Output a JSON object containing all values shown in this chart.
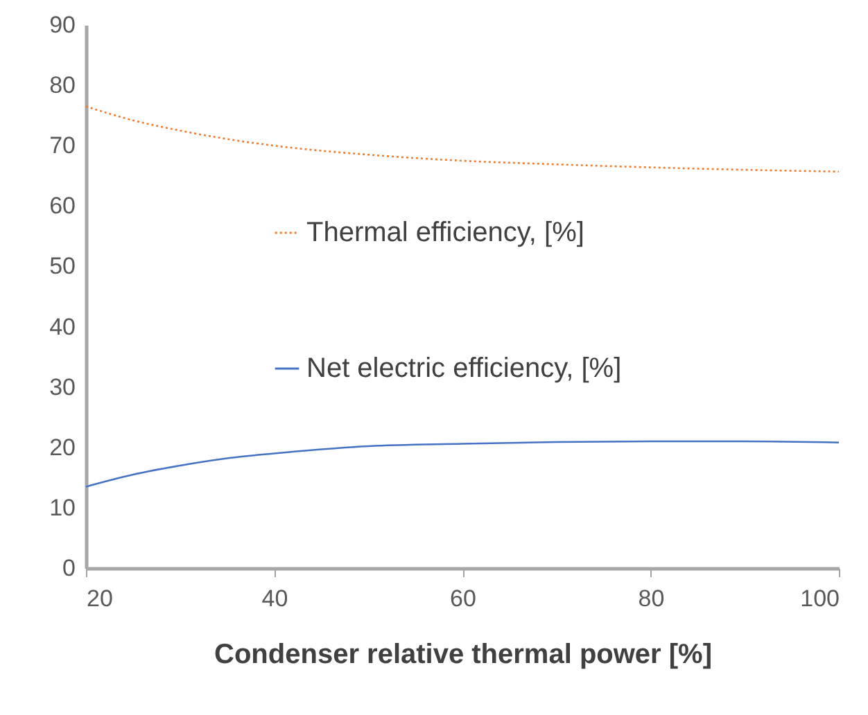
{
  "chart_data": {
    "type": "line",
    "xlabel": "Condenser relative thermal power [%]",
    "x": [
      20,
      25,
      30,
      35,
      40,
      50,
      60,
      70,
      80,
      90,
      100
    ],
    "series": [
      {
        "name": "Thermal efficiency, [%]",
        "color": "#ed7d31",
        "line_style": "dotted",
        "values": [
          76.5,
          74.2,
          72.5,
          71.1,
          70,
          68.5,
          67.5,
          66.9,
          66.4,
          66,
          65.7
        ]
      },
      {
        "name": "Net electric efficiency, [%]",
        "color": "#4472c4",
        "line_style": "solid",
        "values": [
          13.5,
          15.5,
          17,
          18.2,
          19,
          20.2,
          20.6,
          20.9,
          21,
          21,
          20.8
        ]
      }
    ],
    "xlim": [
      20,
      100
    ],
    "xticks": [
      20,
      40,
      60,
      80,
      100
    ],
    "ylim": [
      0,
      90
    ],
    "yticks": [
      0,
      10,
      20,
      30,
      40,
      50,
      60,
      70,
      80,
      90
    ],
    "grid": false,
    "legend": "right",
    "marker": "none"
  }
}
